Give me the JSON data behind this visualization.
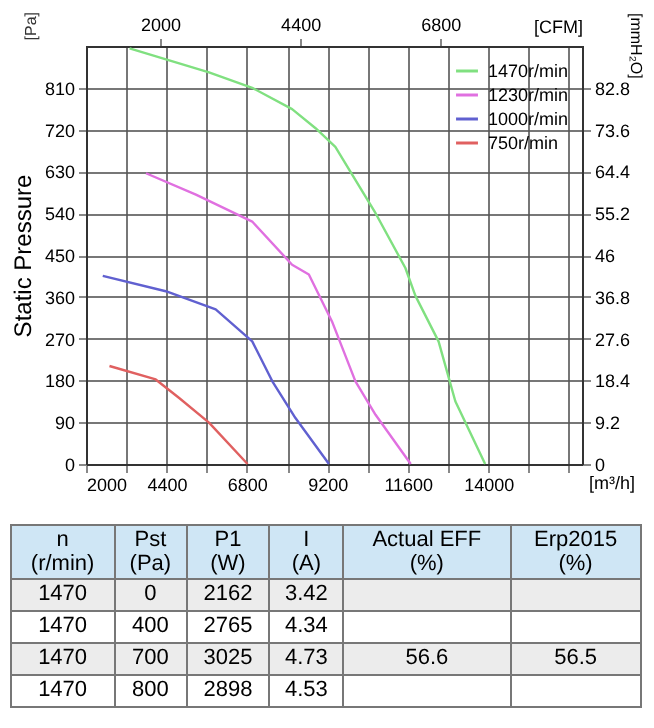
{
  "chart_data": [
    {
      "type": "line",
      "ylabel": "Static Pressure",
      "xlabel": "[m³/h]",
      "x2label": "[CFM]",
      "y2label": "[mmH₂O]",
      "annotations": [
        "[Pa]"
      ],
      "xlim": [
        2000,
        16800
      ],
      "xticks": [
        2000,
        {
          "value": 3200,
          "label": null
        },
        4400,
        {
          "value": 5600,
          "label": null
        },
        6800,
        {
          "value": 8000,
          "label": null
        },
        9200,
        {
          "value": 10400,
          "label": null
        },
        11600,
        {
          "value": 12800,
          "label": null
        },
        14000,
        {
          "value": 15200,
          "label": null
        },
        {
          "value": 16400,
          "label": null
        }
      ],
      "x2lim": [
        730,
        9230
      ],
      "x2ticks": [
        2000,
        4400,
        6800
      ],
      "ylim": [
        0,
        900
      ],
      "yticks": [
        0,
        90,
        180,
        270,
        360,
        450,
        540,
        630,
        720,
        810
      ],
      "y2lim": [
        0,
        92
      ],
      "y2ticks": [
        0,
        9.2,
        18.4,
        27.6,
        36.8,
        46,
        55.2,
        64.4,
        73.6,
        82.8
      ],
      "grid": true,
      "legend": "top right",
      "marker": "none",
      "line_style": "solid",
      "series": [
        {
          "name": "1470r/min",
          "color": "#80e080",
          "x": [
            3300,
            5670,
            6960,
            8150,
            8850,
            9440,
            10640,
            11530,
            11830,
            12520,
            13020,
            13910
          ],
          "values": [
            895,
            843,
            810,
            764,
            723,
            683,
            540,
            422,
            362,
            264,
            135,
            0
          ]
        },
        {
          "name": "1230r/min",
          "color": "#e070e0",
          "x": [
            3790,
            5280,
            6960,
            8150,
            8650,
            9340,
            10040,
            10640,
            11690
          ],
          "values": [
            626,
            580,
            522,
            429,
            408,
            307,
            178,
            106,
            0
          ]
        },
        {
          "name": "1000r/min",
          "color": "#6060d0",
          "x": [
            2500,
            4380,
            5870,
            6960,
            7560,
            8250,
            9250
          ],
          "values": [
            405,
            372,
            333,
            264,
            178,
            99,
            0
          ]
        },
        {
          "name": "750r/min",
          "color": "#e06060",
          "x": [
            2700,
            4080,
            4780,
            5670,
            6820
          ],
          "values": [
            211,
            182,
            142,
            89,
            0
          ]
        }
      ]
    },
    {
      "type": "other",
      "categories": [
        "n (r/min)",
        "Pst (Pa)",
        "P1 (W)",
        "I (A)",
        "Actual EFF (%)",
        "Erp2015 (%)"
      ],
      "cell_labels": [
        [
          "1470",
          "0",
          "2162",
          "3.42",
          null,
          null
        ],
        [
          "1470",
          "400",
          "2765",
          "4.34",
          null,
          null
        ],
        [
          "1470",
          "700",
          "3025",
          "4.73",
          "56.6",
          "56.5"
        ],
        [
          "1470",
          "800",
          "2898",
          "4.53",
          null,
          null
        ]
      ]
    }
  ]
}
